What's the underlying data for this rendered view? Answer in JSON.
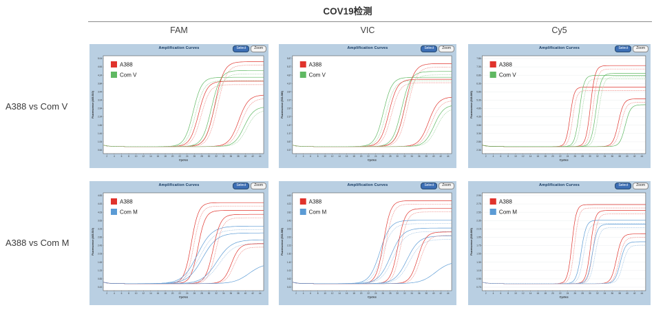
{
  "page": {
    "title": "COV19检测"
  },
  "columns": [
    {
      "label": "FAM"
    },
    {
      "label": "VIC"
    },
    {
      "label": "Cy5"
    }
  ],
  "rows": [
    {
      "label": "A388 vs Com V"
    },
    {
      "label": "A388 vs Com M"
    }
  ],
  "panel_chrome": {
    "title": "Amplification Curves",
    "buttons": [
      {
        "label": "Select"
      },
      {
        "label": "Zoom"
      }
    ]
  },
  "colors": {
    "page_bg": "#ffffff",
    "panel_bg": "#b9cfe2",
    "panel_title_text": "#12365e",
    "select_button_bg": "#3c6eb4",
    "zoom_button_bg": "#f4f4f4",
    "curves": {
      "red": {
        "main": "#e0332c",
        "light": "#f0918c"
      },
      "green": {
        "main": "#5fb862",
        "light": "#a5d6a6"
      },
      "blue": {
        "main": "#5b9bd5",
        "light": "#a8c9e6"
      }
    }
  },
  "chart_data": [
    {
      "type": "line",
      "row": "A388 vs Com V",
      "column": "FAM",
      "title": "Amplification Curves",
      "xlabel": "Cycles",
      "ylabel": "Fluorescence (465-510)",
      "x_range": [
        1,
        45
      ],
      "grid": false,
      "x_ticks": [
        "2",
        "4",
        "6",
        "8",
        "10",
        "12",
        "14",
        "16",
        "18",
        "20",
        "22",
        "24",
        "26",
        "28",
        "30",
        "32",
        "34",
        "36",
        "38",
        "40",
        "42",
        "44"
      ],
      "y_ticks": [
        "5.04",
        "4.64",
        "4.24",
        "3.84",
        "3.44",
        "3.04",
        "2.64",
        "2.24",
        "1.84",
        "1.44",
        "1.04",
        "0.64"
      ],
      "legend": [
        {
          "label": "A388",
          "color_key": "red"
        },
        {
          "label": "Com V",
          "color_key": "green"
        }
      ],
      "series": [
        {
          "group": "Com V",
          "color_key": "green",
          "mid_cycle": 26,
          "steepness": 0.85,
          "plateau": 0.78,
          "replicates": 2
        },
        {
          "group": "A388",
          "color_key": "red",
          "mid_cycle": 27.5,
          "steepness": 0.85,
          "plateau": 0.74,
          "replicates": 2
        },
        {
          "group": "Com V",
          "color_key": "green",
          "mid_cycle": 31,
          "steepness": 0.8,
          "plateau": 0.85,
          "replicates": 2
        },
        {
          "group": "A388",
          "color_key": "red",
          "mid_cycle": 32,
          "steepness": 0.8,
          "plateau": 0.94,
          "replicates": 2
        },
        {
          "group": "A388",
          "color_key": "red",
          "mid_cycle": 38.5,
          "steepness": 0.75,
          "plateau": 0.6,
          "replicates": 2
        },
        {
          "group": "Com V",
          "color_key": "green",
          "mid_cycle": 40,
          "steepness": 0.75,
          "plateau": 0.48,
          "replicates": 2
        }
      ]
    },
    {
      "type": "line",
      "row": "A388 vs Com V",
      "column": "VIC",
      "title": "Amplification Curves",
      "xlabel": "Cycles",
      "ylabel": "Fluorescence (533-580)",
      "x_range": [
        1,
        45
      ],
      "grid": false,
      "x_ticks": [
        "2",
        "4",
        "6",
        "8",
        "10",
        "12",
        "14",
        "16",
        "18",
        "20",
        "22",
        "24",
        "26",
        "28",
        "30",
        "32",
        "34",
        "36",
        "38",
        "40",
        "42",
        "44"
      ],
      "y_ticks": [
        "5.87",
        "5.37",
        "4.87",
        "4.37",
        "3.87",
        "3.37",
        "2.87",
        "2.37",
        "1.87",
        "1.37",
        "0.87",
        "0.37"
      ],
      "legend": [
        {
          "label": "A388",
          "color_key": "red"
        },
        {
          "label": "Com V",
          "color_key": "green"
        }
      ],
      "series": [
        {
          "group": "Com V",
          "color_key": "green",
          "mid_cycle": 26.5,
          "steepness": 0.85,
          "plateau": 0.78,
          "replicates": 2
        },
        {
          "group": "A388",
          "color_key": "red",
          "mid_cycle": 28,
          "steepness": 0.85,
          "plateau": 0.76,
          "replicates": 2
        },
        {
          "group": "Com V",
          "color_key": "green",
          "mid_cycle": 31.5,
          "steepness": 0.8,
          "plateau": 0.84,
          "replicates": 2
        },
        {
          "group": "A388",
          "color_key": "red",
          "mid_cycle": 32.5,
          "steepness": 0.8,
          "plateau": 0.92,
          "replicates": 2
        },
        {
          "group": "A388",
          "color_key": "red",
          "mid_cycle": 39,
          "steepness": 0.75,
          "plateau": 0.58,
          "replicates": 2
        },
        {
          "group": "Com V",
          "color_key": "green",
          "mid_cycle": 40.5,
          "steepness": 0.75,
          "plateau": 0.5,
          "replicates": 2
        }
      ]
    },
    {
      "type": "line",
      "row": "A388 vs Com V",
      "column": "Cy5",
      "title": "Amplification Curves",
      "xlabel": "Cycles",
      "ylabel": "Fluorescence (618-660)",
      "x_range": [
        1,
        45
      ],
      "grid": true,
      "x_ticks": [
        "2",
        "4",
        "6",
        "8",
        "10",
        "12",
        "14",
        "16",
        "18",
        "20",
        "22",
        "24",
        "26",
        "28",
        "30",
        "32",
        "34",
        "36",
        "38",
        "40",
        "42",
        "44"
      ],
      "y_ticks": [
        "7.86",
        "7.36",
        "6.86",
        "6.36",
        "5.86",
        "5.36",
        "4.86",
        "4.36",
        "3.86",
        "3.36",
        "2.86",
        "2.36"
      ],
      "legend": [
        {
          "label": "A388",
          "color_key": "red"
        },
        {
          "label": "Com V",
          "color_key": "green"
        }
      ],
      "series": [
        {
          "group": "A388",
          "color_key": "red",
          "mid_cycle": 25,
          "steepness": 1.8,
          "plateau": 0.68,
          "replicates": 2
        },
        {
          "group": "Com V",
          "color_key": "green",
          "mid_cycle": 27.5,
          "steepness": 1.6,
          "plateau": 0.8,
          "replicates": 2
        },
        {
          "group": "A388",
          "color_key": "red",
          "mid_cycle": 30.5,
          "steepness": 1.6,
          "plateau": 0.9,
          "replicates": 2
        },
        {
          "group": "Com V",
          "color_key": "green",
          "mid_cycle": 32,
          "steepness": 1.5,
          "plateau": 0.82,
          "replicates": 2
        },
        {
          "group": "A388",
          "color_key": "red",
          "mid_cycle": 38,
          "steepness": 1.4,
          "plateau": 0.56,
          "replicates": 2
        },
        {
          "group": "Com V",
          "color_key": "green",
          "mid_cycle": 39.5,
          "steepness": 1.4,
          "plateau": 0.5,
          "replicates": 1
        }
      ]
    },
    {
      "type": "line",
      "row": "A388 vs Com M",
      "column": "FAM",
      "title": "Amplification Curves",
      "xlabel": "Cycles",
      "ylabel": "Fluorescence (465-510)",
      "x_range": [
        1,
        45
      ],
      "grid": false,
      "x_ticks": [
        "2",
        "4",
        "6",
        "8",
        "10",
        "12",
        "14",
        "16",
        "18",
        "20",
        "22",
        "24",
        "26",
        "28",
        "30",
        "32",
        "34",
        "36",
        "38",
        "40",
        "42",
        "44"
      ],
      "y_ticks": [
        "4.83",
        "4.43",
        "4.03",
        "3.63",
        "3.23",
        "2.83",
        "2.43",
        "2.03",
        "1.63",
        "1.23",
        "0.83",
        "0.43"
      ],
      "legend": [
        {
          "label": "A388",
          "color_key": "red"
        },
        {
          "label": "Com M",
          "color_key": "blue"
        }
      ],
      "series": [
        {
          "group": "A388",
          "color_key": "red",
          "mid_cycle": 25.5,
          "steepness": 1.0,
          "plateau": 0.9,
          "replicates": 2
        },
        {
          "group": "A388",
          "color_key": "red",
          "mid_cycle": 27,
          "steepness": 1.0,
          "plateau": 0.82,
          "replicates": 1
        },
        {
          "group": "Com M",
          "color_key": "blue",
          "mid_cycle": 27.5,
          "steepness": 0.5,
          "plateau": 0.66,
          "replicates": 3
        },
        {
          "group": "A388",
          "color_key": "red",
          "mid_cycle": 31.5,
          "steepness": 0.95,
          "plateau": 0.78,
          "replicates": 2
        },
        {
          "group": "Com M",
          "color_key": "blue",
          "mid_cycle": 32.5,
          "steepness": 0.5,
          "plateau": 0.52,
          "replicates": 2
        },
        {
          "group": "A388",
          "color_key": "red",
          "mid_cycle": 36.5,
          "steepness": 0.9,
          "plateau": 0.48,
          "replicates": 2
        },
        {
          "group": "Com M",
          "color_key": "blue",
          "mid_cycle": 41,
          "steepness": 0.5,
          "plateau": 0.28,
          "replicates": 1
        }
      ]
    },
    {
      "type": "line",
      "row": "A388 vs Com M",
      "column": "VIC",
      "title": "Amplification Curves",
      "xlabel": "Cycles",
      "ylabel": "Fluorescence (533-580)",
      "x_range": [
        1,
        45
      ],
      "grid": false,
      "x_ticks": [
        "2",
        "4",
        "6",
        "8",
        "10",
        "12",
        "14",
        "16",
        "18",
        "20",
        "22",
        "24",
        "26",
        "28",
        "30",
        "32",
        "34",
        "36",
        "38",
        "40",
        "42",
        "44"
      ],
      "y_ticks": [
        "4.62",
        "4.22",
        "3.82",
        "3.42",
        "3.02",
        "2.62",
        "2.22",
        "1.82",
        "1.42",
        "1.02",
        "0.62",
        "0.22"
      ],
      "legend": [
        {
          "label": "A388",
          "color_key": "red"
        },
        {
          "label": "Com M",
          "color_key": "blue"
        }
      ],
      "series": [
        {
          "group": "Com M",
          "color_key": "blue",
          "mid_cycle": 25.5,
          "steepness": 0.7,
          "plateau": 0.72,
          "replicates": 2
        },
        {
          "group": "A388",
          "color_key": "red",
          "mid_cycle": 26.5,
          "steepness": 1.0,
          "plateau": 0.92,
          "replicates": 2
        },
        {
          "group": "Com M",
          "color_key": "blue",
          "mid_cycle": 28.5,
          "steepness": 0.6,
          "plateau": 0.64,
          "replicates": 2
        },
        {
          "group": "A388",
          "color_key": "red",
          "mid_cycle": 30.5,
          "steepness": 1.0,
          "plateau": 0.84,
          "replicates": 2
        },
        {
          "group": "Com M",
          "color_key": "blue",
          "mid_cycle": 33,
          "steepness": 0.6,
          "plateau": 0.56,
          "replicates": 2
        },
        {
          "group": "A388",
          "color_key": "red",
          "mid_cycle": 36,
          "steepness": 0.9,
          "plateau": 0.6,
          "replicates": 2
        },
        {
          "group": "Com M",
          "color_key": "blue",
          "mid_cycle": 40.5,
          "steepness": 0.5,
          "plateau": 0.3,
          "replicates": 1
        }
      ]
    },
    {
      "type": "line",
      "row": "A388 vs Com M",
      "column": "Cy5",
      "title": "Amplification Curves",
      "xlabel": "Cycles",
      "ylabel": "Fluorescence (618-660)",
      "x_range": [
        1,
        45
      ],
      "grid": true,
      "x_ticks": [
        "2",
        "4",
        "6",
        "8",
        "10",
        "12",
        "14",
        "16",
        "18",
        "20",
        "22",
        "24",
        "26",
        "28",
        "30",
        "32",
        "34",
        "36",
        "38",
        "40",
        "42",
        "44"
      ],
      "y_ticks": [
        "2.95",
        "2.75",
        "2.55",
        "2.35",
        "2.15",
        "1.95",
        "1.75",
        "1.55",
        "1.35",
        "1.15",
        "0.95",
        "0.75"
      ],
      "legend": [
        {
          "label": "A388",
          "color_key": "red"
        },
        {
          "label": "Com M",
          "color_key": "blue"
        }
      ],
      "series": [
        {
          "group": "A388",
          "color_key": "red",
          "mid_cycle": 25.5,
          "steepness": 1.7,
          "plateau": 0.88,
          "replicates": 2
        },
        {
          "group": "Com M",
          "color_key": "blue",
          "mid_cycle": 28,
          "steepness": 1.5,
          "plateau": 0.72,
          "replicates": 2
        },
        {
          "group": "A388",
          "color_key": "red",
          "mid_cycle": 30.5,
          "steepness": 1.6,
          "plateau": 0.82,
          "replicates": 2
        },
        {
          "group": "Com M",
          "color_key": "blue",
          "mid_cycle": 31,
          "steepness": 1.5,
          "plateau": 0.68,
          "replicates": 2
        },
        {
          "group": "A388",
          "color_key": "red",
          "mid_cycle": 37.5,
          "steepness": 1.4,
          "plateau": 0.58,
          "replicates": 2
        },
        {
          "group": "Com M",
          "color_key": "blue",
          "mid_cycle": 38.5,
          "steepness": 1.4,
          "plateau": 0.5,
          "replicates": 2
        }
      ]
    }
  ]
}
